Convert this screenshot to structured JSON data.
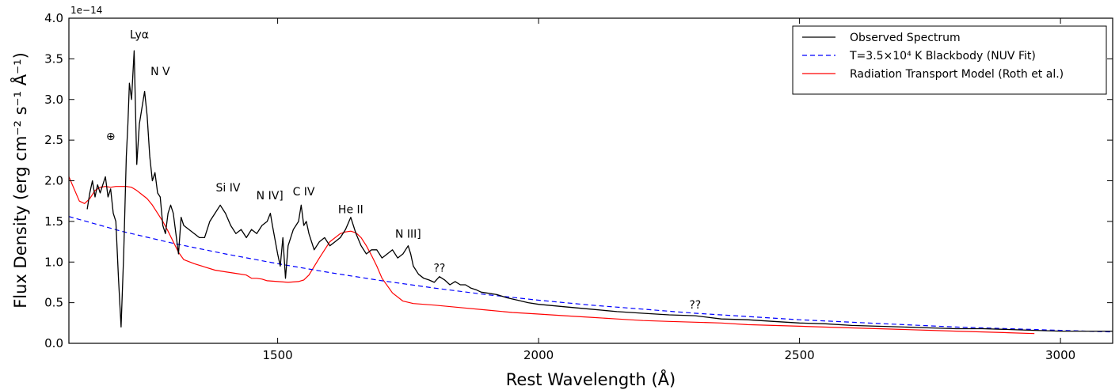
{
  "chart_data": {
    "type": "line",
    "xlabel": "Rest Wavelength (Å)",
    "ylabel": "Flux Density (erg cm⁻² s⁻¹ Å⁻¹)",
    "y_scale_label": "1e−14",
    "xlim": [
      1100,
      3100
    ],
    "ylim": [
      0.0,
      4.0
    ],
    "x_ticks": [
      1500,
      2000,
      2500,
      3000
    ],
    "y_ticks": [
      0.0,
      0.5,
      1.0,
      1.5,
      2.0,
      2.5,
      3.0,
      3.5,
      4.0
    ],
    "x_tick_labels": [
      "1500",
      "2000",
      "2500",
      "3000"
    ],
    "y_tick_labels": [
      "0.0",
      "0.5",
      "1.0",
      "1.5",
      "2.0",
      "2.5",
      "3.0",
      "3.5",
      "4.0"
    ],
    "grid": false,
    "legend_position": "top-right",
    "series": [
      {
        "name": "Observed Spectrum",
        "color": "#000000",
        "style": "solid",
        "x": [
          1135,
          1140,
          1145,
          1150,
          1155,
          1160,
          1165,
          1170,
          1175,
          1180,
          1185,
          1190,
          1195,
          1200,
          1205,
          1210,
          1213,
          1216,
          1220,
          1225,
          1230,
          1235,
          1240,
          1245,
          1250,
          1255,
          1260,
          1265,
          1270,
          1275,
          1280,
          1285,
          1290,
          1295,
          1300,
          1305,
          1310,
          1315,
          1320,
          1330,
          1340,
          1350,
          1360,
          1370,
          1380,
          1390,
          1395,
          1400,
          1410,
          1420,
          1430,
          1440,
          1450,
          1460,
          1470,
          1480,
          1486,
          1490,
          1500,
          1505,
          1510,
          1515,
          1520,
          1530,
          1540,
          1545,
          1550,
          1555,
          1560,
          1570,
          1580,
          1590,
          1600,
          1610,
          1620,
          1630,
          1640,
          1645,
          1650,
          1660,
          1670,
          1680,
          1690,
          1700,
          1710,
          1720,
          1730,
          1740,
          1745,
          1750,
          1755,
          1760,
          1770,
          1780,
          1790,
          1800,
          1810,
          1820,
          1830,
          1840,
          1850,
          1860,
          1870,
          1880,
          1890,
          1900,
          1920,
          1940,
          1960,
          1980,
          2000,
          2050,
          2100,
          2150,
          2200,
          2250,
          2300,
          2350,
          2400,
          2450,
          2500,
          2550,
          2600,
          2650,
          2700,
          2750,
          2800,
          2850,
          2900,
          2950,
          3000,
          3050,
          3100
        ],
        "y": [
          1.65,
          1.85,
          2.0,
          1.8,
          1.95,
          1.85,
          1.95,
          2.05,
          1.8,
          1.9,
          1.6,
          1.5,
          0.8,
          0.2,
          1.1,
          2.3,
          2.7,
          3.2,
          3.0,
          3.6,
          2.2,
          2.7,
          2.9,
          3.1,
          2.8,
          2.3,
          2.0,
          2.1,
          1.85,
          1.8,
          1.45,
          1.35,
          1.6,
          1.7,
          1.6,
          1.35,
          1.1,
          1.55,
          1.45,
          1.4,
          1.35,
          1.3,
          1.3,
          1.5,
          1.6,
          1.7,
          1.65,
          1.6,
          1.45,
          1.35,
          1.4,
          1.3,
          1.4,
          1.35,
          1.45,
          1.5,
          1.6,
          1.45,
          1.1,
          0.95,
          1.3,
          0.8,
          1.2,
          1.4,
          1.5,
          1.7,
          1.45,
          1.5,
          1.35,
          1.15,
          1.25,
          1.3,
          1.2,
          1.25,
          1.3,
          1.4,
          1.55,
          1.45,
          1.35,
          1.2,
          1.1,
          1.15,
          1.15,
          1.05,
          1.1,
          1.15,
          1.05,
          1.1,
          1.15,
          1.2,
          1.1,
          0.95,
          0.85,
          0.8,
          0.78,
          0.75,
          0.82,
          0.78,
          0.72,
          0.76,
          0.72,
          0.72,
          0.68,
          0.66,
          0.63,
          0.62,
          0.6,
          0.56,
          0.53,
          0.5,
          0.48,
          0.45,
          0.42,
          0.39,
          0.37,
          0.35,
          0.34,
          0.3,
          0.29,
          0.27,
          0.25,
          0.24,
          0.22,
          0.21,
          0.2,
          0.19,
          0.18,
          0.18,
          0.17,
          0.16,
          0.15,
          0.15,
          0.15
        ]
      },
      {
        "name": "T=3.5×10⁴ K Blackbody (NUV Fit)",
        "color": "#0000ff",
        "style": "dashed",
        "x": [
          1100,
          1200,
          1300,
          1400,
          1500,
          1600,
          1700,
          1800,
          1900,
          2000,
          2100,
          2200,
          2300,
          2400,
          2500,
          2600,
          2700,
          2800,
          2900,
          3000,
          3100
        ],
        "y": [
          1.56,
          1.38,
          1.23,
          1.1,
          0.98,
          0.87,
          0.77,
          0.68,
          0.6,
          0.53,
          0.47,
          0.42,
          0.37,
          0.33,
          0.29,
          0.26,
          0.23,
          0.2,
          0.18,
          0.16,
          0.14
        ]
      },
      {
        "name": "Radiation Transport Model (Roth et al.)",
        "color": "#ff0000",
        "style": "solid",
        "x": [
          1100,
          1110,
          1120,
          1130,
          1140,
          1150,
          1160,
          1170,
          1180,
          1190,
          1200,
          1210,
          1220,
          1230,
          1240,
          1250,
          1260,
          1270,
          1280,
          1290,
          1300,
          1310,
          1320,
          1340,
          1360,
          1380,
          1400,
          1420,
          1440,
          1450,
          1460,
          1470,
          1480,
          1500,
          1520,
          1540,
          1550,
          1560,
          1580,
          1600,
          1620,
          1630,
          1640,
          1650,
          1660,
          1670,
          1680,
          1690,
          1700,
          1720,
          1740,
          1760,
          1800,
          1850,
          1900,
          1950,
          2000,
          2050,
          2100,
          2150,
          2200,
          2250,
          2300,
          2350,
          2400,
          2500,
          2600,
          2700,
          2800,
          2900,
          2950
        ],
        "y": [
          2.05,
          1.9,
          1.75,
          1.72,
          1.78,
          1.88,
          1.92,
          1.93,
          1.92,
          1.93,
          1.93,
          1.93,
          1.92,
          1.88,
          1.83,
          1.78,
          1.7,
          1.6,
          1.5,
          1.38,
          1.25,
          1.12,
          1.03,
          0.98,
          0.94,
          0.9,
          0.88,
          0.86,
          0.84,
          0.8,
          0.8,
          0.79,
          0.77,
          0.76,
          0.75,
          0.76,
          0.78,
          0.84,
          1.05,
          1.25,
          1.35,
          1.37,
          1.38,
          1.36,
          1.3,
          1.2,
          1.08,
          0.95,
          0.8,
          0.62,
          0.52,
          0.49,
          0.47,
          0.44,
          0.41,
          0.38,
          0.36,
          0.34,
          0.32,
          0.3,
          0.28,
          0.27,
          0.26,
          0.25,
          0.23,
          0.21,
          0.19,
          0.17,
          0.15,
          0.13,
          0.12
        ]
      }
    ],
    "annotations": [
      {
        "text": "Lyα",
        "x": 1235,
        "y": 3.75
      },
      {
        "text": "N V",
        "x": 1275,
        "y": 3.3
      },
      {
        "text": "⊕",
        "x": 1180,
        "y": 2.5
      },
      {
        "text": "Si IV",
        "x": 1405,
        "y": 1.87
      },
      {
        "text": "N IV]",
        "x": 1485,
        "y": 1.77
      },
      {
        "text": "C IV",
        "x": 1550,
        "y": 1.82
      },
      {
        "text": "He II",
        "x": 1640,
        "y": 1.6
      },
      {
        "text": "N III]",
        "x": 1750,
        "y": 1.3
      },
      {
        "text": "??",
        "x": 1810,
        "y": 0.88
      },
      {
        "text": "??",
        "x": 2300,
        "y": 0.43
      }
    ]
  }
}
